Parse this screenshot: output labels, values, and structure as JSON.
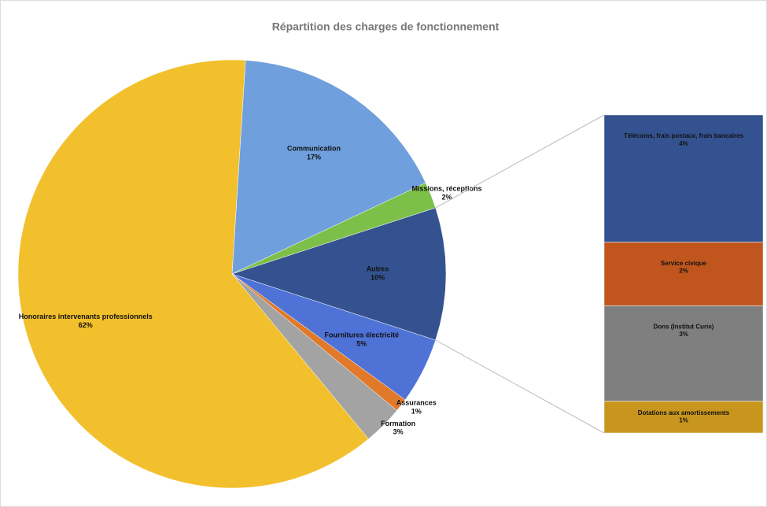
{
  "chart_data": {
    "type": "pie-of-bar",
    "title": "Répartition des charges de fonctionnement",
    "categories": [
      "Communication",
      "Missions, réceptions",
      "Autres",
      "Fournitures électricité",
      "Assurances",
      "Formation",
      "Honoraires intervenants professionnels"
    ],
    "values": [
      17,
      2,
      10,
      5,
      1,
      3,
      62
    ],
    "value_labels": [
      "17%",
      "2%",
      "10%",
      "5%",
      "1%",
      "3%",
      "62%"
    ],
    "colors": [
      "#6f9fdc",
      "#7cc04a",
      "#34528f",
      "#4f72d6",
      "#e07a2a",
      "#a3a3a3",
      "#f2c02c"
    ],
    "breakdown": {
      "categories": [
        "Télécoms, frais postaux, frais bancaires",
        "Service civique",
        "Dons (Institut Curie)",
        "Dotations aux amortissements"
      ],
      "values": [
        4,
        2,
        3,
        1
      ],
      "value_labels": [
        "4%",
        "2%",
        "3%",
        "1%"
      ],
      "colors": [
        "#34528f",
        "#c0561e",
        "#7f7f7f",
        "#c8961e"
      ]
    }
  }
}
